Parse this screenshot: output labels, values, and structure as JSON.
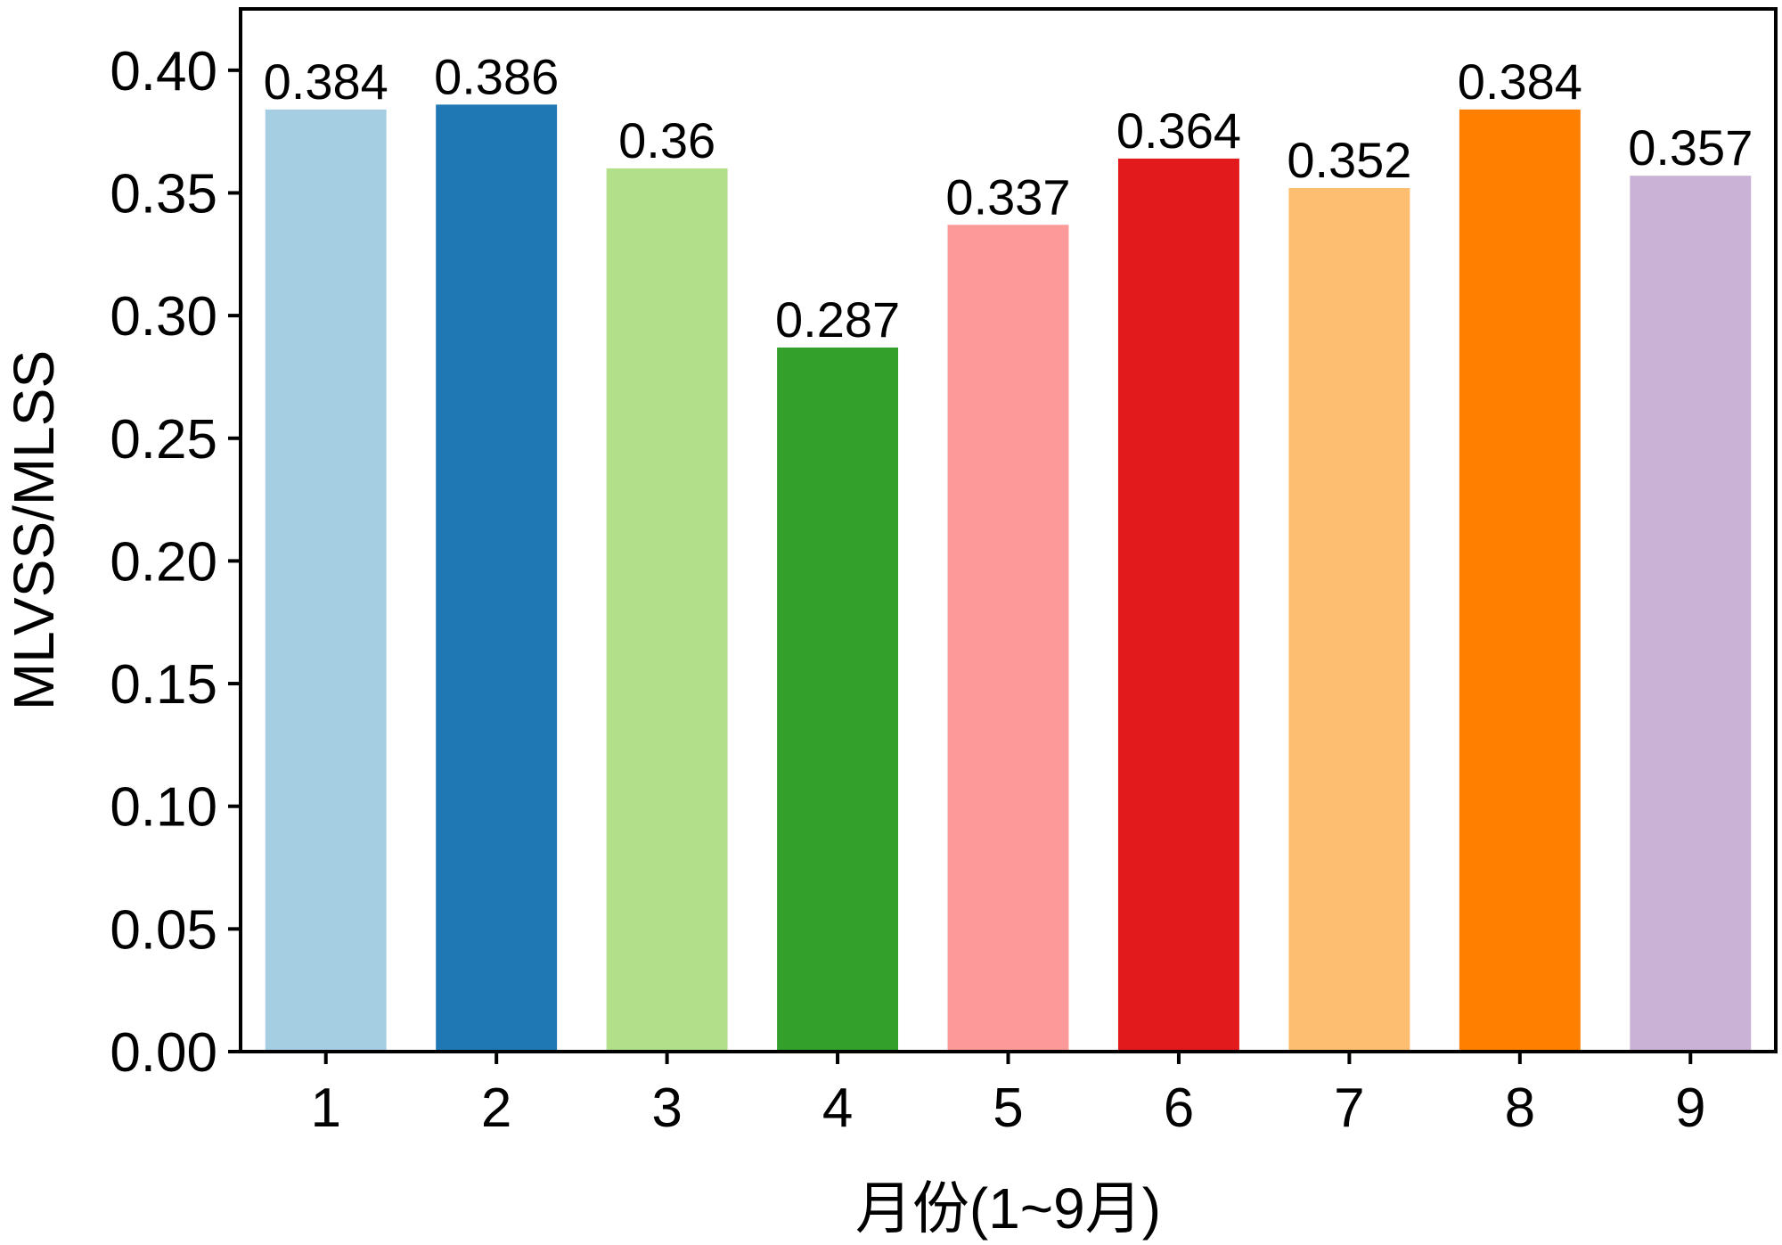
{
  "chart_data": {
    "type": "bar",
    "title": "",
    "xlabel": "月份(1~9月)",
    "ylabel": "MLVSS/MLSS",
    "categories": [
      "1",
      "2",
      "3",
      "4",
      "5",
      "6",
      "7",
      "8",
      "9"
    ],
    "values": [
      0.384,
      0.386,
      0.36,
      0.287,
      0.337,
      0.364,
      0.352,
      0.384,
      0.357
    ],
    "data_labels": [
      "0.384",
      "0.386",
      "0.36",
      "0.287",
      "0.337",
      "0.364",
      "0.352",
      "0.384",
      "0.357"
    ],
    "colors": [
      "#a6cee3",
      "#1f78b4",
      "#b2df8a",
      "#33a02c",
      "#fb9a99",
      "#e31a1c",
      "#fdbf6f",
      "#ff7f00",
      "#cab2d6"
    ],
    "ylim": [
      0,
      0.425
    ],
    "yticks": [
      0.0,
      0.05,
      0.1,
      0.15,
      0.2,
      0.25,
      0.3,
      0.35,
      0.4
    ],
    "ytick_labels": [
      "0.00",
      "0.05",
      "0.10",
      "0.15",
      "0.20",
      "0.25",
      "0.30",
      "0.35",
      "0.40"
    ],
    "grid": false,
    "legend": "none"
  }
}
